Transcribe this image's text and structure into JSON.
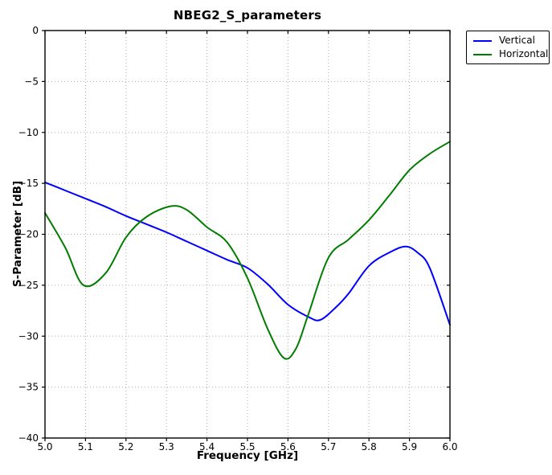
{
  "chart_data": {
    "type": "line",
    "title": "NBEG2_S_parameters",
    "xlabel": "Frequency [GHz]",
    "ylabel": "S-Parameter [dB]",
    "xlim": [
      5.0,
      6.0
    ],
    "ylim": [
      -40,
      0
    ],
    "grid": true,
    "grid_style": "dotted",
    "grid_color": "#b0b0b0",
    "frame_color": "#000000",
    "legend_position": "upper-right-outside",
    "x_ticks": [
      5.0,
      5.1,
      5.2,
      5.3,
      5.4,
      5.5,
      5.6,
      5.7,
      5.8,
      5.9,
      6.0
    ],
    "x_tick_labels": [
      "5.0",
      "5.1",
      "5.2",
      "5.3",
      "5.4",
      "5.5",
      "5.6",
      "5.7",
      "5.8",
      "5.9",
      "6.0"
    ],
    "y_ticks": [
      0,
      -5,
      -10,
      -15,
      -20,
      -25,
      -30,
      -35,
      -40
    ],
    "y_tick_labels": [
      "0",
      "−5",
      "−10",
      "−15",
      "−20",
      "−25",
      "−30",
      "−35",
      "−40"
    ],
    "series": [
      {
        "name": "Vertical",
        "color": "#0000ff",
        "points": [
          [
            5.0,
            -14.9
          ],
          [
            5.05,
            -15.7
          ],
          [
            5.1,
            -16.5
          ],
          [
            5.15,
            -17.3
          ],
          [
            5.2,
            -18.2
          ],
          [
            5.25,
            -19.0
          ],
          [
            5.3,
            -19.8
          ],
          [
            5.35,
            -20.7
          ],
          [
            5.4,
            -21.6
          ],
          [
            5.45,
            -22.5
          ],
          [
            5.5,
            -23.3
          ],
          [
            5.55,
            -24.9
          ],
          [
            5.6,
            -26.9
          ],
          [
            5.65,
            -28.1
          ],
          [
            5.68,
            -28.4
          ],
          [
            5.72,
            -27.1
          ],
          [
            5.75,
            -25.8
          ],
          [
            5.8,
            -23.1
          ],
          [
            5.85,
            -21.8
          ],
          [
            5.89,
            -21.2
          ],
          [
            5.92,
            -21.8
          ],
          [
            5.95,
            -23.3
          ],
          [
            6.0,
            -28.9
          ]
        ]
      },
      {
        "name": "Horizontal",
        "color": "#007d00",
        "points": [
          [
            5.0,
            -17.9
          ],
          [
            5.05,
            -21.3
          ],
          [
            5.095,
            -25.0
          ],
          [
            5.15,
            -23.8
          ],
          [
            5.2,
            -20.3
          ],
          [
            5.25,
            -18.3
          ],
          [
            5.31,
            -17.25
          ],
          [
            5.35,
            -17.6
          ],
          [
            5.4,
            -19.3
          ],
          [
            5.45,
            -20.8
          ],
          [
            5.5,
            -24.3
          ],
          [
            5.55,
            -29.3
          ],
          [
            5.59,
            -32.15
          ],
          [
            5.62,
            -31.2
          ],
          [
            5.65,
            -27.9
          ],
          [
            5.7,
            -22.3
          ],
          [
            5.75,
            -20.5
          ],
          [
            5.8,
            -18.6
          ],
          [
            5.85,
            -16.2
          ],
          [
            5.9,
            -13.7
          ],
          [
            5.95,
            -12.1
          ],
          [
            6.0,
            -10.9
          ]
        ]
      }
    ]
  }
}
